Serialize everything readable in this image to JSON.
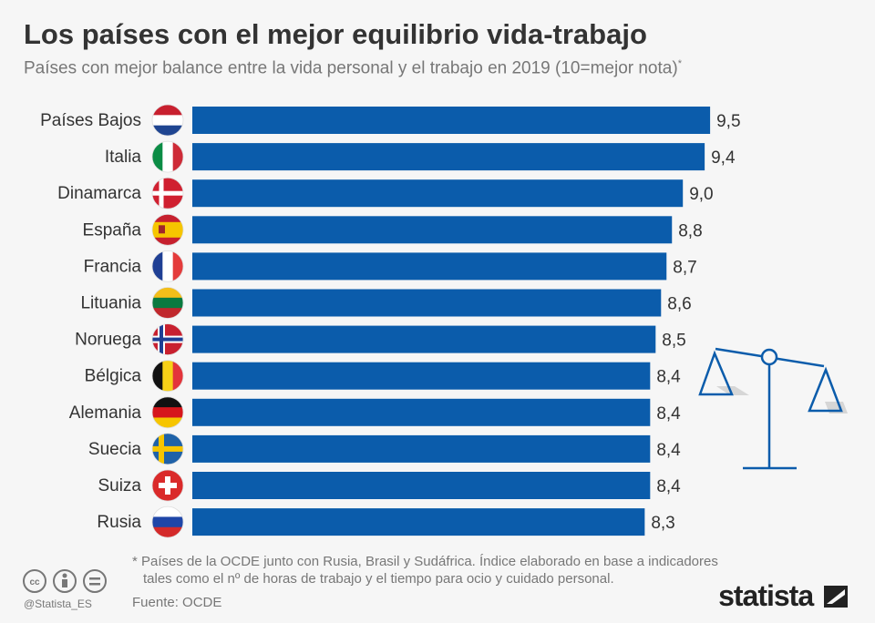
{
  "header": {
    "title": "Los países con el mejor equilibrio vida-trabajo",
    "subtitle": "Países con mejor balance entre la vida personal y el trabajo en 2019 (10=mejor nota)",
    "subtitle_mark": "*"
  },
  "chart_data": {
    "type": "bar",
    "orientation": "horizontal",
    "xlim": [
      0,
      10
    ],
    "grid": false,
    "bar_color": "#0b5cab",
    "categories": [
      "Países Bajos",
      "Italia",
      "Dinamarca",
      "España",
      "Francia",
      "Lituania",
      "Noruega",
      "Bélgica",
      "Alemania",
      "Suecia",
      "Suiza",
      "Rusia"
    ],
    "value_labels": [
      "9,5",
      "9,4",
      "9,0",
      "8,8",
      "8,7",
      "8,6",
      "8,5",
      "8,4",
      "8,4",
      "8,4",
      "8,4",
      "8,3"
    ],
    "values": [
      9.5,
      9.4,
      9.0,
      8.8,
      8.7,
      8.6,
      8.5,
      8.4,
      8.4,
      8.4,
      8.4,
      8.3
    ],
    "flags": [
      "netherlands",
      "italy",
      "denmark",
      "spain",
      "france",
      "lithuania",
      "norway",
      "belgium",
      "germany",
      "sweden",
      "switzerland",
      "russia"
    ]
  },
  "footer": {
    "note_line1": "* Países de la OCDE junto con Rusia, Brasil y Sudáfrica. Índice elaborado en base a indicadores",
    "note_line2": "tales como el nº de horas de trabajo y el tiempo para ocio y cuidado personal.",
    "source": "Fuente: OCDE",
    "handle": "@Statista_ES",
    "logo": "statista"
  }
}
